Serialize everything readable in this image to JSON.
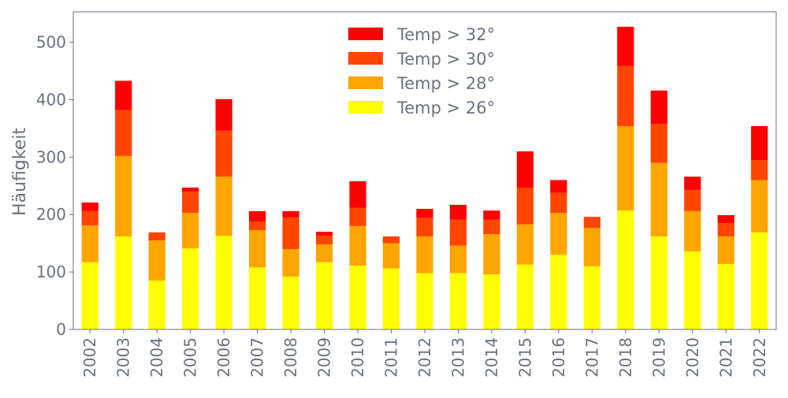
{
  "chart_data": {
    "type": "bar",
    "stacked": true,
    "title": "",
    "xlabel": "",
    "ylabel": "Häufigkeit",
    "ylim": [
      0,
      553
    ],
    "yticks": [
      0,
      100,
      200,
      300,
      400,
      500
    ],
    "legend_position": "top-center",
    "categories": [
      "2002",
      "2003",
      "2004",
      "2005",
      "2006",
      "2007",
      "2008",
      "2009",
      "2010",
      "2011",
      "2012",
      "2013",
      "2014",
      "2015",
      "2016",
      "2017",
      "2018",
      "2019",
      "2020",
      "2021",
      "2022"
    ],
    "series": [
      {
        "name": "Temp > 26°",
        "color": "#ffff00",
        "values": [
          117,
          162,
          85,
          141,
          163,
          108,
          92,
          117,
          111,
          106,
          98,
          98,
          96,
          113,
          130,
          110,
          207,
          162,
          136,
          114,
          169
        ]
      },
      {
        "name": "Temp > 28°",
        "color": "#ffa500",
        "values": [
          64,
          140,
          70,
          62,
          103,
          65,
          48,
          31,
          69,
          44,
          64,
          48,
          70,
          70,
          73,
          67,
          147,
          128,
          70,
          48,
          91
        ]
      },
      {
        "name": "Temp > 30°",
        "color": "#ff4500",
        "values": [
          25,
          80,
          14,
          37,
          80,
          15,
          55,
          15,
          32,
          12,
          32,
          45,
          25,
          64,
          35,
          19,
          105,
          68,
          37,
          23,
          35
        ]
      },
      {
        "name": "Temp > 32°",
        "color": "#ff0000",
        "values": [
          15,
          51,
          0,
          7,
          55,
          18,
          11,
          7,
          46,
          0,
          16,
          26,
          16,
          63,
          22,
          0,
          68,
          58,
          23,
          14,
          59
        ]
      }
    ]
  }
}
